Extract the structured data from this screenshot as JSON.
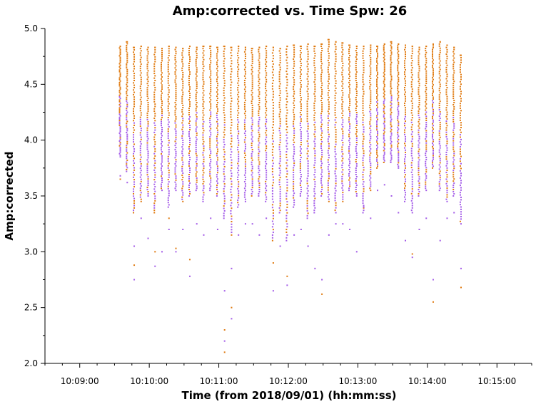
{
  "chart_data": {
    "type": "scatter",
    "title": "Amp:corrected vs. Time Spw: 26",
    "xlabel": "Time (from 2018/09/01) (hh:mm:ss)",
    "ylabel": "Amp:corrected",
    "xlim": [
      "10:08:30",
      "10:15:30"
    ],
    "ylim": [
      2.0,
      5.0
    ],
    "xticks": [
      "10:09:00",
      "10:10:00",
      "10:11:00",
      "10:12:00",
      "10:13:00",
      "10:14:00",
      "10:15:00"
    ],
    "yticks": [
      "2.0",
      "2.5",
      "3.0",
      "3.5",
      "4.0",
      "4.5",
      "5.0"
    ],
    "grid": false,
    "colors": {
      "series_a": "#e07a10",
      "series_b": "#a45ce8"
    },
    "scans": {
      "time": [
        "10:09:35",
        "10:09:41",
        "10:09:47",
        "10:09:53",
        "10:09:59",
        "10:10:05",
        "10:10:11",
        "10:10:17",
        "10:10:23",
        "10:10:29",
        "10:10:35",
        "10:10:41",
        "10:10:47",
        "10:10:53",
        "10:10:59",
        "10:11:05",
        "10:11:11",
        "10:11:17",
        "10:11:23",
        "10:11:29",
        "10:11:35",
        "10:11:41",
        "10:11:47",
        "10:11:53",
        "10:11:59",
        "10:12:05",
        "10:12:11",
        "10:12:17",
        "10:12:23",
        "10:12:29",
        "10:12:35",
        "10:12:41",
        "10:12:47",
        "10:12:53",
        "10:12:59",
        "10:13:05",
        "10:13:11",
        "10:13:17",
        "10:13:23",
        "10:13:29",
        "10:13:35",
        "10:13:41",
        "10:13:47",
        "10:13:53",
        "10:13:59",
        "10:14:05",
        "10:14:11",
        "10:14:17",
        "10:14:23",
        "10:14:29"
      ],
      "max": [
        4.84,
        4.88,
        4.83,
        4.84,
        4.83,
        4.83,
        4.82,
        4.84,
        4.83,
        4.82,
        4.84,
        4.83,
        4.84,
        4.84,
        4.83,
        4.84,
        4.83,
        4.84,
        4.83,
        4.82,
        4.83,
        4.84,
        4.83,
        4.82,
        4.84,
        4.85,
        4.84,
        4.86,
        4.84,
        4.86,
        4.9,
        4.88,
        4.87,
        4.85,
        4.84,
        4.84,
        4.85,
        4.84,
        4.86,
        4.88,
        4.86,
        4.85,
        4.84,
        4.83,
        4.84,
        4.86,
        4.88,
        4.85,
        4.83,
        4.76
      ],
      "core_min": [
        3.85,
        3.72,
        3.35,
        3.45,
        3.5,
        3.35,
        3.55,
        3.4,
        3.55,
        3.45,
        3.5,
        3.55,
        3.45,
        3.55,
        3.5,
        3.3,
        3.15,
        3.4,
        3.45,
        3.5,
        3.5,
        3.45,
        3.1,
        3.35,
        3.1,
        3.4,
        3.5,
        3.3,
        3.35,
        3.5,
        3.45,
        3.35,
        3.45,
        3.55,
        3.5,
        3.35,
        3.55,
        3.75,
        3.8,
        3.8,
        3.75,
        3.45,
        3.35,
        3.5,
        3.55,
        3.75,
        3.55,
        3.45,
        3.5,
        3.25
      ],
      "outliers": [
        [
          3.68,
          3.65
        ],
        [
          3.62
        ],
        [
          2.75,
          2.88,
          3.05
        ],
        [
          3.3
        ],
        [
          3.12
        ],
        [
          2.87,
          3.0
        ],
        [
          3.0
        ],
        [
          3.2,
          3.3
        ],
        [
          3.0,
          3.03
        ],
        [
          3.2
        ],
        [
          2.78,
          2.93
        ],
        [
          3.25
        ],
        [
          3.15
        ],
        [
          3.3
        ],
        [
          3.2
        ],
        [
          2.65,
          2.3,
          2.2,
          2.1
        ],
        [
          2.4,
          2.5,
          2.85
        ],
        [
          3.15
        ],
        [
          3.25
        ],
        [
          3.25
        ],
        [
          3.15
        ],
        [
          3.3
        ],
        [
          2.65,
          2.9
        ],
        [
          3.05
        ],
        [
          2.7,
          2.78
        ],
        [
          3.15
        ],
        [
          3.2
        ],
        [
          3.05
        ],
        [
          2.85
        ],
        [
          2.75,
          2.62
        ],
        [
          3.15
        ],
        [
          3.25
        ],
        [
          3.25
        ],
        [
          3.2
        ],
        [
          3.0
        ],
        [
          3.4
        ],
        [
          3.3
        ],
        [
          3.55
        ],
        [
          3.6
        ],
        [
          3.5
        ],
        [
          3.35
        ],
        [
          3.1
        ],
        [
          2.95,
          2.98
        ],
        [
          3.2
        ],
        [
          3.3
        ],
        [
          2.75,
          2.55
        ],
        [
          3.1
        ],
        [
          3.3
        ],
        [
          3.35
        ],
        [
          2.85,
          2.68
        ]
      ]
    }
  }
}
